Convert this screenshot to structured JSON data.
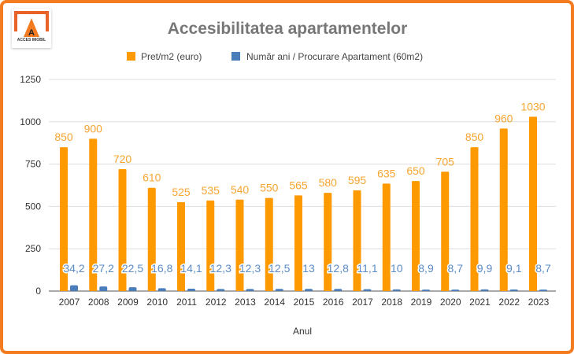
{
  "logo_text": "ACCES IMOBIL",
  "chart_data": {
    "type": "bar",
    "title": "Accesibilitatea apartamentelor",
    "xlabel": "Anul",
    "ylabel": "",
    "ylim": [
      0,
      1250
    ],
    "yticks": [
      0,
      250,
      500,
      750,
      1000,
      1250
    ],
    "grid": true,
    "legend": "top",
    "categories": [
      "2007",
      "2008",
      "2009",
      "2010",
      "2011",
      "2012",
      "2013",
      "2014",
      "2015",
      "2016",
      "2017",
      "2018",
      "2019",
      "2020",
      "2021",
      "2022",
      "2023"
    ],
    "series": [
      {
        "name": "Pret/m2 (euro)",
        "color": "#ff9900",
        "labels": [
          "850",
          "900",
          "720",
          "610",
          "525",
          "535",
          "540",
          "550",
          "565",
          "580",
          "595",
          "635",
          "650",
          "705",
          "850",
          "960",
          "1030"
        ],
        "values": [
          850,
          900,
          720,
          610,
          525,
          535,
          540,
          550,
          565,
          580,
          595,
          635,
          650,
          705,
          850,
          960,
          1030
        ]
      },
      {
        "name": "Număr ani / Procurare Apartament (60m2)",
        "color": "#4a7ebb",
        "labels": [
          "34,2",
          "27,2",
          "22,5",
          "16,8",
          "14,1",
          "12,3",
          "12,3",
          "12,5",
          "13",
          "12,8",
          "11,1",
          "10",
          "8,9",
          "8,7",
          "9,9",
          "9,1",
          "8,7"
        ],
        "values": [
          34.2,
          27.2,
          22.5,
          16.8,
          14.1,
          12.3,
          12.3,
          12.5,
          13,
          12.8,
          11.1,
          10,
          8.9,
          8.7,
          9.9,
          9.1,
          8.7
        ]
      }
    ]
  }
}
